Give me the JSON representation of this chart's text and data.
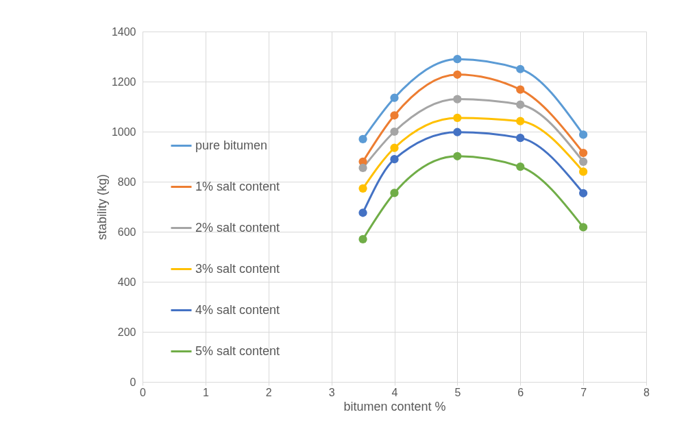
{
  "chart_data": {
    "type": "line",
    "xlabel": "bitumen content %",
    "ylabel": "stability (kg)",
    "x": [
      3.5,
      4,
      5,
      6,
      7
    ],
    "xlim": [
      0,
      8
    ],
    "xticks": [
      0,
      1,
      2,
      3,
      4,
      5,
      6,
      7,
      8
    ],
    "ylim": [
      0,
      1400
    ],
    "yticks": [
      0,
      200,
      400,
      600,
      800,
      1000,
      1200,
      1400
    ],
    "grid": true,
    "legend": "left",
    "marker": "circle",
    "line_style": "solid",
    "series": [
      {
        "name": "pure bitumen",
        "color": "#5b9bd5",
        "values": [
          970,
          1135,
          1290,
          1250,
          988
        ]
      },
      {
        "name": "1% salt content",
        "color": "#ed7d31",
        "values": [
          880,
          1065,
          1228,
          1168,
          915
        ]
      },
      {
        "name": "2% salt content",
        "color": "#a5a5a5",
        "values": [
          855,
          1000,
          1130,
          1108,
          880
        ]
      },
      {
        "name": "3% salt content",
        "color": "#ffc000",
        "values": [
          773,
          935,
          1055,
          1042,
          840
        ]
      },
      {
        "name": "4% salt content",
        "color": "#4472c4",
        "values": [
          676,
          890,
          998,
          975,
          754
        ]
      },
      {
        "name": "5% salt content",
        "color": "#70ad47",
        "values": [
          570,
          755,
          902,
          860,
          618
        ]
      }
    ]
  }
}
